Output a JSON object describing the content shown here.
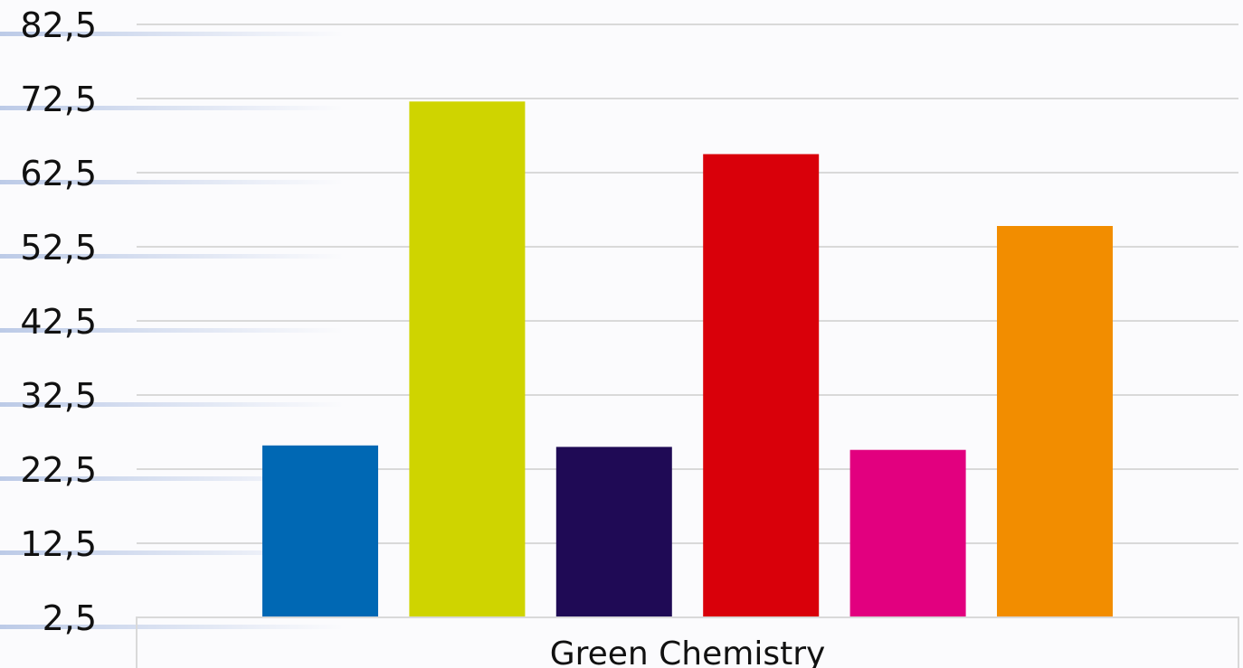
{
  "chart_data": {
    "type": "bar",
    "categories": [
      "Green Chemistry"
    ],
    "series": [
      {
        "values": [
          25.7
        ],
        "color": "#0068b4"
      },
      {
        "values": [
          72.1
        ],
        "color": "#cfd400"
      },
      {
        "values": [
          25.5
        ],
        "color": "#1f0a55"
      },
      {
        "values": [
          65.0
        ],
        "color": "#d9000a"
      },
      {
        "values": [
          25.1
        ],
        "color": "#e2007f"
      },
      {
        "values": [
          55.3
        ],
        "color": "#f28d00"
      }
    ],
    "y_ticks": [
      "82,5",
      "72,5",
      "62,5",
      "52,5",
      "42,5",
      "32,5",
      "22,5",
      "12,5",
      "2,5"
    ],
    "ylim": [
      2.5,
      82.5
    ],
    "grid": true,
    "title": "",
    "xlabel": "",
    "ylabel": ""
  }
}
